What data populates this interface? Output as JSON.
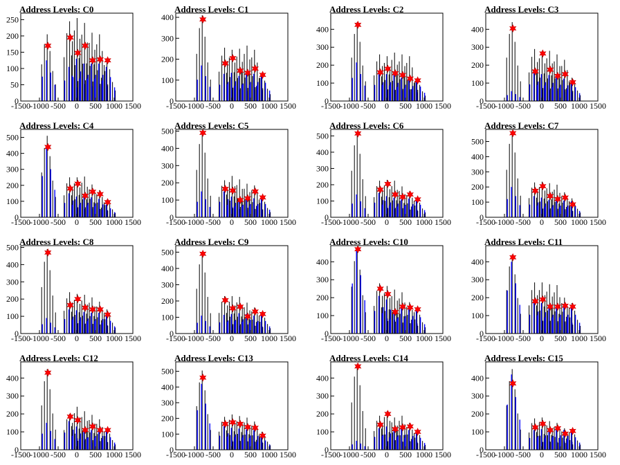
{
  "chart_data": [
    {
      "type": "bar",
      "title": "Address Levels: C0",
      "xlim": [
        -1500,
        1500
      ],
      "ylim": [
        0,
        270
      ],
      "xticks": [
        "-1500",
        "-1000",
        "-500",
        "0",
        "500",
        "1000",
        "1500"
      ],
      "yticks": [
        "0",
        "50",
        "100",
        "150",
        "200",
        "250"
      ],
      "peaks": [
        {
          "x": -700,
          "black": 205,
          "blue": 125,
          "marker": 170
        },
        {
          "x": -100,
          "black": 245,
          "blue": 105,
          "marker": 195
        },
        {
          "x": 100,
          "black": 255,
          "blue": 130,
          "marker": 148
        },
        {
          "x": 300,
          "black": 240,
          "blue": 115,
          "marker": 170
        },
        {
          "x": 500,
          "black": 210,
          "blue": 115,
          "marker": 125
        },
        {
          "x": 700,
          "black": 205,
          "blue": 115,
          "marker": 128
        },
        {
          "x": 900,
          "black": 130,
          "blue": 105,
          "marker": 125
        }
      ]
    },
    {
      "type": "bar",
      "title": "Address Levels: C1",
      "xlim": [
        -1500,
        1500
      ],
      "ylim": [
        0,
        420
      ],
      "xticks": [
        "-1500",
        "-1000",
        "-500",
        "0",
        "500",
        "1000",
        "1500"
      ],
      "yticks": [
        "0",
        "100",
        "200",
        "300",
        "400"
      ],
      "peaks": [
        {
          "x": -700,
          "black": 410,
          "blue": 170,
          "marker": 390
        },
        {
          "x": -100,
          "black": 255,
          "blue": 130,
          "marker": 180
        },
        {
          "x": 100,
          "black": 245,
          "blue": 135,
          "marker": 205
        },
        {
          "x": 300,
          "black": 250,
          "blue": 120,
          "marker": 145
        },
        {
          "x": 500,
          "black": 265,
          "blue": 130,
          "marker": 135
        },
        {
          "x": 700,
          "black": 245,
          "blue": 130,
          "marker": 155
        },
        {
          "x": 900,
          "black": 130,
          "blue": 125,
          "marker": 125
        }
      ]
    },
    {
      "type": "bar",
      "title": "Address Levels: C2",
      "xlim": [
        -1500,
        1500
      ],
      "ylim": [
        0,
        490
      ],
      "xticks": [
        "-1500",
        "-1000",
        "-500",
        "0",
        "500",
        "1000",
        "1500"
      ],
      "yticks": [
        "0",
        "100",
        "200",
        "300",
        "400"
      ],
      "peaks": [
        {
          "x": -700,
          "black": 440,
          "blue": 215,
          "marker": 425
        },
        {
          "x": -100,
          "black": 260,
          "blue": 150,
          "marker": 160
        },
        {
          "x": 100,
          "black": 250,
          "blue": 150,
          "marker": 180
        },
        {
          "x": 300,
          "black": 270,
          "blue": 145,
          "marker": 155
        },
        {
          "x": 500,
          "black": 260,
          "blue": 130,
          "marker": 145
        },
        {
          "x": 700,
          "black": 250,
          "blue": 120,
          "marker": 125
        },
        {
          "x": 900,
          "black": 120,
          "blue": 115,
          "marker": 115
        }
      ]
    },
    {
      "type": "bar",
      "title": "Address Levels: C3",
      "xlim": [
        -1500,
        1500
      ],
      "ylim": [
        0,
        490
      ],
      "xticks": [
        "-1500",
        "-1000",
        "-500",
        "0",
        "500",
        "1000",
        "1500"
      ],
      "yticks": [
        "0",
        "100",
        "200",
        "300",
        "400"
      ],
      "peaks": [
        {
          "x": -700,
          "black": 440,
          "blue": 55,
          "marker": 405
        },
        {
          "x": -100,
          "black": 290,
          "blue": 155,
          "marker": 165
        },
        {
          "x": 100,
          "black": 280,
          "blue": 150,
          "marker": 265
        },
        {
          "x": 300,
          "black": 280,
          "blue": 145,
          "marker": 175
        },
        {
          "x": 500,
          "black": 260,
          "blue": 130,
          "marker": 140
        },
        {
          "x": 700,
          "black": 230,
          "blue": 125,
          "marker": 150
        },
        {
          "x": 900,
          "black": 130,
          "blue": 110,
          "marker": 105
        }
      ]
    },
    {
      "type": "bar",
      "title": "Address Levels: C4",
      "xlim": [
        -1500,
        1500
      ],
      "ylim": [
        0,
        550
      ],
      "xticks": [
        "-1500",
        "-1000",
        "-500",
        "0",
        "500",
        "1000",
        "1500"
      ],
      "yticks": [
        "0",
        "100",
        "200",
        "300",
        "400",
        "500"
      ],
      "peaks": [
        {
          "x": -700,
          "black": 510,
          "blue": 430,
          "marker": 440
        },
        {
          "x": -100,
          "black": 250,
          "blue": 150,
          "marker": 180
        },
        {
          "x": 100,
          "black": 250,
          "blue": 130,
          "marker": 210
        },
        {
          "x": 300,
          "black": 255,
          "blue": 130,
          "marker": 135
        },
        {
          "x": 500,
          "black": 205,
          "blue": 125,
          "marker": 160
        },
        {
          "x": 700,
          "black": 170,
          "blue": 115,
          "marker": 145
        },
        {
          "x": 900,
          "black": 110,
          "blue": 80,
          "marker": 95
        }
      ]
    },
    {
      "type": "bar",
      "title": "Address Levels: C5",
      "xlim": [
        -1500,
        1500
      ],
      "ylim": [
        0,
        510
      ],
      "xticks": [
        "-1500",
        "-1000",
        "-500",
        "0",
        "500",
        "1000",
        "1500"
      ],
      "yticks": [
        "0",
        "100",
        "200",
        "300",
        "400",
        "500"
      ],
      "peaks": [
        {
          "x": -700,
          "black": 500,
          "blue": 150,
          "marker": 490
        },
        {
          "x": -100,
          "black": 215,
          "blue": 150,
          "marker": 165
        },
        {
          "x": 100,
          "black": 240,
          "blue": 120,
          "marker": 155
        },
        {
          "x": 300,
          "black": 220,
          "blue": 105,
          "marker": 100
        },
        {
          "x": 500,
          "black": 195,
          "blue": 110,
          "marker": 110
        },
        {
          "x": 700,
          "black": 185,
          "blue": 110,
          "marker": 150
        },
        {
          "x": 900,
          "black": 120,
          "blue": 110,
          "marker": 115
        }
      ]
    },
    {
      "type": "bar",
      "title": "Address Levels: C6",
      "xlim": [
        -1500,
        1500
      ],
      "ylim": [
        0,
        540
      ],
      "xticks": [
        "-1500",
        "-1000",
        "-500",
        "0",
        "500",
        "1000",
        "1500"
      ],
      "yticks": [
        "0",
        "100",
        "200",
        "300",
        "400",
        "500"
      ],
      "peaks": [
        {
          "x": -700,
          "black": 520,
          "blue": 140,
          "marker": 515
        },
        {
          "x": -100,
          "black": 225,
          "blue": 150,
          "marker": 170
        },
        {
          "x": 100,
          "black": 230,
          "blue": 130,
          "marker": 205
        },
        {
          "x": 300,
          "black": 225,
          "blue": 120,
          "marker": 140
        },
        {
          "x": 500,
          "black": 190,
          "blue": 110,
          "marker": 125
        },
        {
          "x": 700,
          "black": 160,
          "blue": 115,
          "marker": 140
        },
        {
          "x": 900,
          "black": 120,
          "blue": 110,
          "marker": 110
        }
      ]
    },
    {
      "type": "bar",
      "title": "Address Levels: C7",
      "xlim": [
        -1500,
        1500
      ],
      "ylim": [
        0,
        580
      ],
      "xticks": [
        "-1500",
        "-1000",
        "-500",
        "0",
        "500",
        "1000",
        "1500"
      ],
      "yticks": [
        "0",
        "100",
        "200",
        "300",
        "400",
        "500"
      ],
      "peaks": [
        {
          "x": -700,
          "black": 570,
          "blue": 200,
          "marker": 555
        },
        {
          "x": -100,
          "black": 230,
          "blue": 140,
          "marker": 175
        },
        {
          "x": 100,
          "black": 235,
          "blue": 130,
          "marker": 205
        },
        {
          "x": 300,
          "black": 225,
          "blue": 115,
          "marker": 140
        },
        {
          "x": 500,
          "black": 215,
          "blue": 110,
          "marker": 120
        },
        {
          "x": 700,
          "black": 165,
          "blue": 110,
          "marker": 130
        },
        {
          "x": 900,
          "black": 125,
          "blue": 105,
          "marker": 85
        }
      ]
    },
    {
      "type": "bar",
      "title": "Address Levels: C8",
      "xlim": [
        -1500,
        1500
      ],
      "ylim": [
        0,
        510
      ],
      "xticks": [
        "-1500",
        "-1000",
        "-500",
        "0",
        "500",
        "1000",
        "1500"
      ],
      "yticks": [
        "0",
        "100",
        "200",
        "300",
        "400",
        "500"
      ],
      "peaks": [
        {
          "x": -700,
          "black": 490,
          "blue": 90,
          "marker": 470
        },
        {
          "x": -100,
          "black": 240,
          "blue": 140,
          "marker": 165
        },
        {
          "x": 100,
          "black": 230,
          "blue": 135,
          "marker": 200
        },
        {
          "x": 300,
          "black": 225,
          "blue": 125,
          "marker": 150
        },
        {
          "x": 500,
          "black": 210,
          "blue": 120,
          "marker": 140
        },
        {
          "x": 700,
          "black": 185,
          "blue": 120,
          "marker": 140
        },
        {
          "x": 900,
          "black": 140,
          "blue": 105,
          "marker": 110
        }
      ]
    },
    {
      "type": "bar",
      "title": "Address Levels: C9",
      "xlim": [
        -1500,
        1500
      ],
      "ylim": [
        0,
        540
      ],
      "xticks": [
        "-1500",
        "-1000",
        "-500",
        "0",
        "500",
        "1000",
        "1500"
      ],
      "yticks": [
        "0",
        "100",
        "200",
        "300",
        "400",
        "500"
      ],
      "peaks": [
        {
          "x": -700,
          "black": 500,
          "blue": 110,
          "marker": 490
        },
        {
          "x": -100,
          "black": 230,
          "blue": 115,
          "marker": 205
        },
        {
          "x": 100,
          "black": 230,
          "blue": 120,
          "marker": 155
        },
        {
          "x": 300,
          "black": 225,
          "blue": 125,
          "marker": 165
        },
        {
          "x": 500,
          "black": 190,
          "blue": 120,
          "marker": 105
        },
        {
          "x": 700,
          "black": 160,
          "blue": 110,
          "marker": 135
        },
        {
          "x": 900,
          "black": 130,
          "blue": 110,
          "marker": 120
        }
      ]
    },
    {
      "type": "bar",
      "title": "Address Levels: C10",
      "xlim": [
        -1500,
        1500
      ],
      "ylim": [
        0,
        490
      ],
      "xticks": [
        "-1500",
        "-1000",
        "-500",
        "0",
        "500",
        "1000",
        "1500"
      ],
      "yticks": [
        "0",
        "100",
        "200",
        "300",
        "400"
      ],
      "peaks": [
        {
          "x": -700,
          "black": 475,
          "blue": 465,
          "marker": 470
        },
        {
          "x": -100,
          "black": 280,
          "blue": 210,
          "marker": 250
        },
        {
          "x": 100,
          "black": 265,
          "blue": 190,
          "marker": 220
        },
        {
          "x": 300,
          "black": 245,
          "blue": 130,
          "marker": 120
        },
        {
          "x": 500,
          "black": 230,
          "blue": 140,
          "marker": 150
        },
        {
          "x": 700,
          "black": 175,
          "blue": 140,
          "marker": 145
        },
        {
          "x": 900,
          "black": 140,
          "blue": 130,
          "marker": 135
        }
      ]
    },
    {
      "type": "bar",
      "title": "Address Levels: C11",
      "xlim": [
        -1500,
        1500
      ],
      "ylim": [
        0,
        490
      ],
      "xticks": [
        "-1500",
        "-1000",
        "-500",
        "0",
        "500",
        "1000",
        "1500"
      ],
      "yticks": [
        "0",
        "100",
        "200",
        "300",
        "400"
      ],
      "peaks": [
        {
          "x": -700,
          "black": 440,
          "blue": 400,
          "marker": 425
        },
        {
          "x": -100,
          "black": 285,
          "blue": 175,
          "marker": 180
        },
        {
          "x": 100,
          "black": 285,
          "blue": 170,
          "marker": 190
        },
        {
          "x": 300,
          "black": 275,
          "blue": 150,
          "marker": 150
        },
        {
          "x": 500,
          "black": 270,
          "blue": 150,
          "marker": 150
        },
        {
          "x": 700,
          "black": 200,
          "blue": 150,
          "marker": 155
        },
        {
          "x": 900,
          "black": 170,
          "blue": 150,
          "marker": 150
        }
      ]
    },
    {
      "type": "bar",
      "title": "Address Levels: C12",
      "xlim": [
        -1500,
        1500
      ],
      "ylim": [
        0,
        490
      ],
      "xticks": [
        "-1500",
        "-1000",
        "-500",
        "0",
        "500",
        "1000",
        "1500"
      ],
      "yticks": [
        "0",
        "100",
        "200",
        "300",
        "400"
      ],
      "peaks": [
        {
          "x": -700,
          "black": 450,
          "blue": 150,
          "marker": 430
        },
        {
          "x": -100,
          "black": 200,
          "blue": 160,
          "marker": 185
        },
        {
          "x": 100,
          "black": 240,
          "blue": 130,
          "marker": 165
        },
        {
          "x": 300,
          "black": 215,
          "blue": 100,
          "marker": 110
        },
        {
          "x": 500,
          "black": 195,
          "blue": 110,
          "marker": 130
        },
        {
          "x": 700,
          "black": 170,
          "blue": 110,
          "marker": 110
        },
        {
          "x": 900,
          "black": 120,
          "blue": 100,
          "marker": 110
        }
      ]
    },
    {
      "type": "bar",
      "title": "Address Levels: C13",
      "xlim": [
        -1500,
        1500
      ],
      "ylim": [
        0,
        560
      ],
      "xticks": [
        "-1500",
        "-1000",
        "-500",
        "0",
        "500",
        "1000",
        "1500"
      ],
      "yticks": [
        "0",
        "100",
        "200",
        "300",
        "400",
        "500"
      ],
      "peaks": [
        {
          "x": -700,
          "black": 505,
          "blue": 420,
          "marker": 460
        },
        {
          "x": -100,
          "black": 210,
          "blue": 150,
          "marker": 165
        },
        {
          "x": 100,
          "black": 225,
          "blue": 140,
          "marker": 175
        },
        {
          "x": 300,
          "black": 215,
          "blue": 135,
          "marker": 165
        },
        {
          "x": 500,
          "black": 205,
          "blue": 130,
          "marker": 145
        },
        {
          "x": 700,
          "black": 180,
          "blue": 125,
          "marker": 140
        },
        {
          "x": 900,
          "black": 115,
          "blue": 85,
          "marker": 90
        }
      ]
    },
    {
      "type": "bar",
      "title": "Address Levels: C14",
      "xlim": [
        -1500,
        1500
      ],
      "ylim": [
        0,
        490
      ],
      "xticks": [
        "-1500",
        "-1000",
        "-500",
        "0",
        "500",
        "1000",
        "1500"
      ],
      "yticks": [
        "0",
        "100",
        "200",
        "300",
        "400"
      ],
      "peaks": [
        {
          "x": -700,
          "black": 480,
          "blue": 50,
          "marker": 465
        },
        {
          "x": -100,
          "black": 190,
          "blue": 120,
          "marker": 140
        },
        {
          "x": 100,
          "black": 215,
          "blue": 130,
          "marker": 200
        },
        {
          "x": 300,
          "black": 180,
          "blue": 115,
          "marker": 115
        },
        {
          "x": 500,
          "black": 190,
          "blue": 120,
          "marker": 125
        },
        {
          "x": 700,
          "black": 150,
          "blue": 110,
          "marker": 130
        },
        {
          "x": 900,
          "black": 110,
          "blue": 95,
          "marker": 100
        }
      ]
    },
    {
      "type": "bar",
      "title": "Address Levels: C15",
      "xlim": [
        -1500,
        1500
      ],
      "ylim": [
        0,
        490
      ],
      "xticks": [
        "-1500",
        "-1000",
        "-500",
        "0",
        "500",
        "1000",
        "1500"
      ],
      "yticks": [
        "0",
        "100",
        "200",
        "300",
        "400"
      ],
      "peaks": [
        {
          "x": -700,
          "black": 450,
          "blue": 420,
          "marker": 370
        },
        {
          "x": -100,
          "black": 175,
          "blue": 110,
          "marker": 125
        },
        {
          "x": 100,
          "black": 180,
          "blue": 115,
          "marker": 145
        },
        {
          "x": 300,
          "black": 160,
          "blue": 110,
          "marker": 110
        },
        {
          "x": 500,
          "black": 150,
          "blue": 115,
          "marker": 120
        },
        {
          "x": 700,
          "black": 120,
          "blue": 110,
          "marker": 90
        },
        {
          "x": 900,
          "black": 115,
          "blue": 100,
          "marker": 105
        }
      ]
    }
  ],
  "colors": {
    "hist_black": "#000000",
    "hist_blue": "#0000ff",
    "marker_fill": "#ff0000",
    "marker_stroke": "#cc0000"
  }
}
